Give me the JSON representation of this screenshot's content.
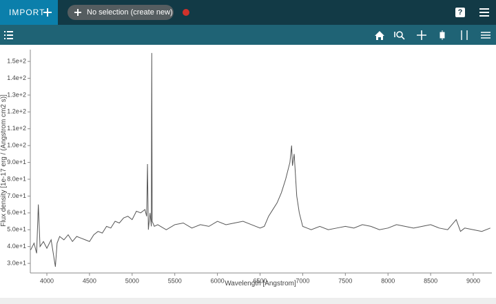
{
  "ui": {
    "import_button": "IMPORT",
    "selection_button": "No selection (create new)",
    "help_icon": "?"
  },
  "chart_data": {
    "type": "line",
    "x_label": "Wavelength [Angstrom]",
    "y_label": "Flux density [1e-17 erg / (Angstrom cm2 s)]",
    "x": [
      3810,
      3850,
      3880,
      3900,
      3920,
      3960,
      4000,
      4050,
      4100,
      4120,
      4150,
      4200,
      4250,
      4300,
      4350,
      4400,
      4450,
      4500,
      4550,
      4600,
      4650,
      4700,
      4750,
      4800,
      4850,
      4900,
      4950,
      5000,
      5050,
      5100,
      5150,
      5170,
      5180,
      5190,
      5210,
      5225,
      5230,
      5235,
      5260,
      5300,
      5400,
      5500,
      5600,
      5700,
      5800,
      5900,
      6000,
      6100,
      6200,
      6300,
      6400,
      6500,
      6550,
      6600,
      6650,
      6700,
      6750,
      6800,
      6850,
      6870,
      6880,
      6900,
      6930,
      6960,
      7000,
      7050,
      7100,
      7200,
      7300,
      7400,
      7500,
      7600,
      7700,
      7800,
      7900,
      8000,
      8100,
      8200,
      8300,
      8400,
      8500,
      8600,
      8700,
      8800,
      8850,
      8900,
      9000,
      9100,
      9200
    ],
    "series": [
      {
        "color": "#555555",
        "values": [
          38,
          42,
          36,
          65,
          40,
          43,
          39,
          44,
          28,
          42,
          46,
          44,
          47,
          43,
          46,
          45,
          44,
          43,
          47,
          49,
          48,
          52,
          51,
          55,
          54,
          57,
          58,
          56,
          61,
          60,
          62,
          58,
          89,
          50,
          60,
          52,
          155,
          55,
          52,
          53,
          50,
          53,
          54,
          51,
          53,
          52,
          55,
          53,
          54,
          55,
          53,
          51,
          52,
          58,
          62,
          66,
          72,
          80,
          90,
          100,
          88,
          95,
          70,
          60,
          52,
          51,
          50,
          52,
          50,
          51,
          52,
          51,
          53,
          52,
          50,
          51,
          53,
          52,
          51,
          52,
          53,
          51,
          50,
          56,
          49,
          51,
          50,
          49,
          51
        ]
      }
    ],
    "xlim": [
      3806,
      9218
    ],
    "ylim": [
      24.3,
      157
    ],
    "xticks": [
      4000,
      4500,
      5000,
      5500,
      6000,
      6500,
      7000,
      7500,
      8000,
      8500,
      9000
    ],
    "yticks": [
      {
        "value": 30,
        "label": "3.0e+1"
      },
      {
        "value": 40,
        "label": "4.0e+1"
      },
      {
        "value": 50,
        "label": "5.0e+1"
      },
      {
        "value": 60,
        "label": "6.0e+1"
      },
      {
        "value": 70,
        "label": "7.0e+1"
      },
      {
        "value": 80,
        "label": "8.0e+1"
      },
      {
        "value": 90,
        "label": "9.0e+1"
      },
      {
        "value": 100,
        "label": "1.0e+2"
      },
      {
        "value": 110,
        "label": "1.1e+2"
      },
      {
        "value": 120,
        "label": "1.2e+2"
      },
      {
        "value": 130,
        "label": "1.3e+2"
      },
      {
        "value": 140,
        "label": "1.4e+2"
      },
      {
        "value": 150,
        "label": "1.5e+2"
      }
    ]
  }
}
